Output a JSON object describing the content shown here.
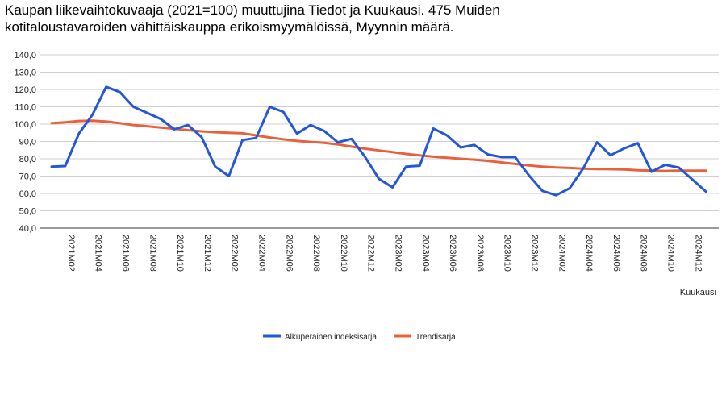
{
  "title_lines": [
    "Kaupan liikevaihtokuvaaja (2021=100) muuttujina Tiedot ja Kuukausi. 475 Muiden",
    "kotitaloustavaroiden vähittäiskauppa erikoismyymälöissä, Myynnin määrä."
  ],
  "chart_data": {
    "type": "line",
    "title": "Kaupan liikevaihtokuvaaja (2021=100) muuttujina Tiedot ja Kuukausi. 475 Muiden kotitaloustavaroiden vähittäiskauppa erikoismyymälöissä, Myynnin määrä.",
    "xlabel": "Kuukausi",
    "ylabel": "",
    "ylim": [
      40,
      140
    ],
    "yticks": [
      "40,0",
      "50,0",
      "60,0",
      "70,0",
      "80,0",
      "90,0",
      "100,0",
      "110,0",
      "120,0",
      "130,0",
      "140,0"
    ],
    "grid": true,
    "legend_position": "bottom",
    "categories": [
      "2021M01",
      "2021M02",
      "2021M03",
      "2021M04",
      "2021M05",
      "2021M06",
      "2021M07",
      "2021M08",
      "2021M09",
      "2021M10",
      "2021M11",
      "2021M12",
      "2022M01",
      "2022M02",
      "2022M03",
      "2022M04",
      "2022M05",
      "2022M06",
      "2022M07",
      "2022M08",
      "2022M09",
      "2022M10",
      "2022M11",
      "2022M12",
      "2023M01",
      "2023M02",
      "2023M03",
      "2023M04",
      "2023M05",
      "2023M06",
      "2023M07",
      "2023M08",
      "2023M09",
      "2023M10",
      "2023M11",
      "2023M12",
      "2024M01",
      "2024M02",
      "2024M03",
      "2024M04",
      "2024M05",
      "2024M06",
      "2024M07",
      "2024M08",
      "2024M09",
      "2024M10",
      "2024M11",
      "2024M12",
      "2025M01",
      "2025M02"
    ],
    "tick_labels": [
      "2021M02",
      "2021M04",
      "2021M06",
      "2021M08",
      "2021M10",
      "2021M12",
      "2022M02",
      "2022M04",
      "2022M06",
      "2022M08",
      "2022M10",
      "2022M12",
      "2023M02",
      "2023M04",
      "2023M06",
      "2023M08",
      "2023M10",
      "2023M12",
      "2024M02",
      "2024M04",
      "2024M06",
      "2024M08",
      "2024M10",
      "2024M12"
    ],
    "series": [
      {
        "name": "Alkuperäinen indeksisarja",
        "color": "#2457d6",
        "values": [
          75.5,
          75.8,
          94.5,
          105.5,
          121.5,
          118.5,
          110.0,
          106.5,
          103.0,
          97.0,
          99.5,
          92.5,
          75.5,
          70.0,
          90.8,
          92.0,
          110.0,
          107.0,
          94.5,
          99.5,
          96.0,
          89.5,
          91.5,
          81.0,
          68.5,
          63.5,
          75.5,
          76.0,
          97.5,
          93.5,
          86.5,
          88.0,
          82.5,
          81.0,
          81.0,
          70.5,
          61.5,
          59.0,
          63.0,
          74.5,
          89.5,
          82.0,
          86.0,
          89.0,
          72.5,
          76.5,
          75.0,
          68.0,
          61.0,
          null
        ]
      },
      {
        "name": "Trendisarja",
        "color": "#e8613c",
        "values": [
          100.5,
          101.0,
          101.8,
          102.0,
          101.5,
          100.5,
          99.5,
          98.8,
          98.0,
          97.3,
          96.5,
          95.8,
          95.3,
          95.0,
          94.7,
          93.5,
          92.3,
          91.2,
          90.3,
          89.7,
          89.2,
          88.3,
          87.0,
          85.8,
          84.8,
          83.8,
          82.8,
          82.0,
          81.2,
          80.6,
          80.0,
          79.5,
          78.8,
          77.9,
          77.0,
          76.2,
          75.5,
          75.0,
          74.7,
          74.3,
          74.1,
          74.0,
          73.8,
          73.4,
          73.1,
          73.0,
          73.1,
          73.1,
          73.1,
          null
        ]
      }
    ]
  }
}
